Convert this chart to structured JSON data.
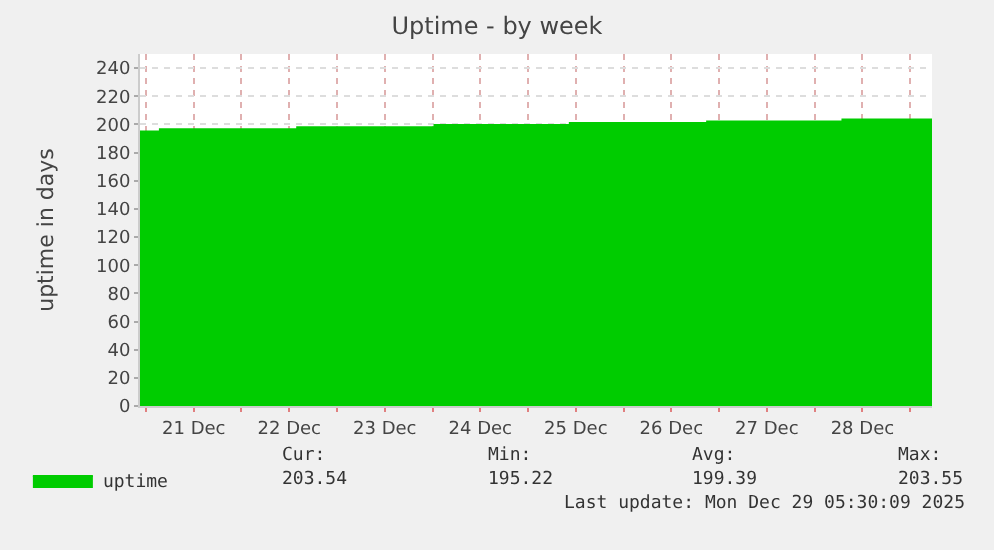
{
  "chart_data": {
    "type": "area",
    "title": "Uptime - by week",
    "ylabel": "uptime in days",
    "x": [
      "2025-12-20T22:30",
      "2025-12-21T03:30",
      "2025-12-21T03:30",
      "2025-12-22T14:00",
      "2025-12-22T14:00",
      "2025-12-24T00:30",
      "2025-12-24T00:30",
      "2025-12-25T10:30",
      "2025-12-25T10:30",
      "2025-12-26T21:00",
      "2025-12-26T21:00",
      "2025-12-28T07:00",
      "2025-12-28T07:00",
      "2025-12-29T05:30"
    ],
    "series": [
      {
        "name": "uptime",
        "color": "#00cc00",
        "values": [
          195,
          195,
          196.5,
          196.5,
          198,
          198,
          199.5,
          199.5,
          201,
          201,
          202,
          202,
          203.5,
          203.5
        ]
      }
    ],
    "xlim": [
      "2025-12-20T22:30",
      "2025-12-29T05:30"
    ],
    "xticks": [
      {
        "value": "2025-12-21",
        "label": null
      },
      {
        "value": "2025-12-21T12:00",
        "label": "21 Dec"
      },
      {
        "value": "2025-12-22",
        "label": null
      },
      {
        "value": "2025-12-22T12:00",
        "label": "22 Dec"
      },
      {
        "value": "2025-12-23",
        "label": null
      },
      {
        "value": "2025-12-23T12:00",
        "label": "23 Dec"
      },
      {
        "value": "2025-12-24",
        "label": null
      },
      {
        "value": "2025-12-24T12:00",
        "label": "24 Dec"
      },
      {
        "value": "2025-12-25",
        "label": null
      },
      {
        "value": "2025-12-25T12:00",
        "label": "25 Dec"
      },
      {
        "value": "2025-12-26",
        "label": null
      },
      {
        "value": "2025-12-26T12:00",
        "label": "26 Dec"
      },
      {
        "value": "2025-12-27",
        "label": null
      },
      {
        "value": "2025-12-27T12:00",
        "label": "27 Dec"
      },
      {
        "value": "2025-12-28",
        "label": null
      },
      {
        "value": "2025-12-28T12:00",
        "label": "28 Dec"
      },
      {
        "value": "2025-12-29",
        "label": null
      }
    ],
    "ylim": [
      0,
      250
    ],
    "yticks": [
      0,
      20,
      40,
      60,
      80,
      100,
      120,
      140,
      160,
      180,
      200,
      220,
      240
    ],
    "grid": true,
    "legend": "bottom left",
    "annotations": [
      "Cur:",
      "Min:",
      "Avg:",
      "Max:",
      "203.54",
      "195.22",
      "199.39",
      "203.55",
      "Last update: Mon Dec 29 05:30:09 2025"
    ]
  }
}
